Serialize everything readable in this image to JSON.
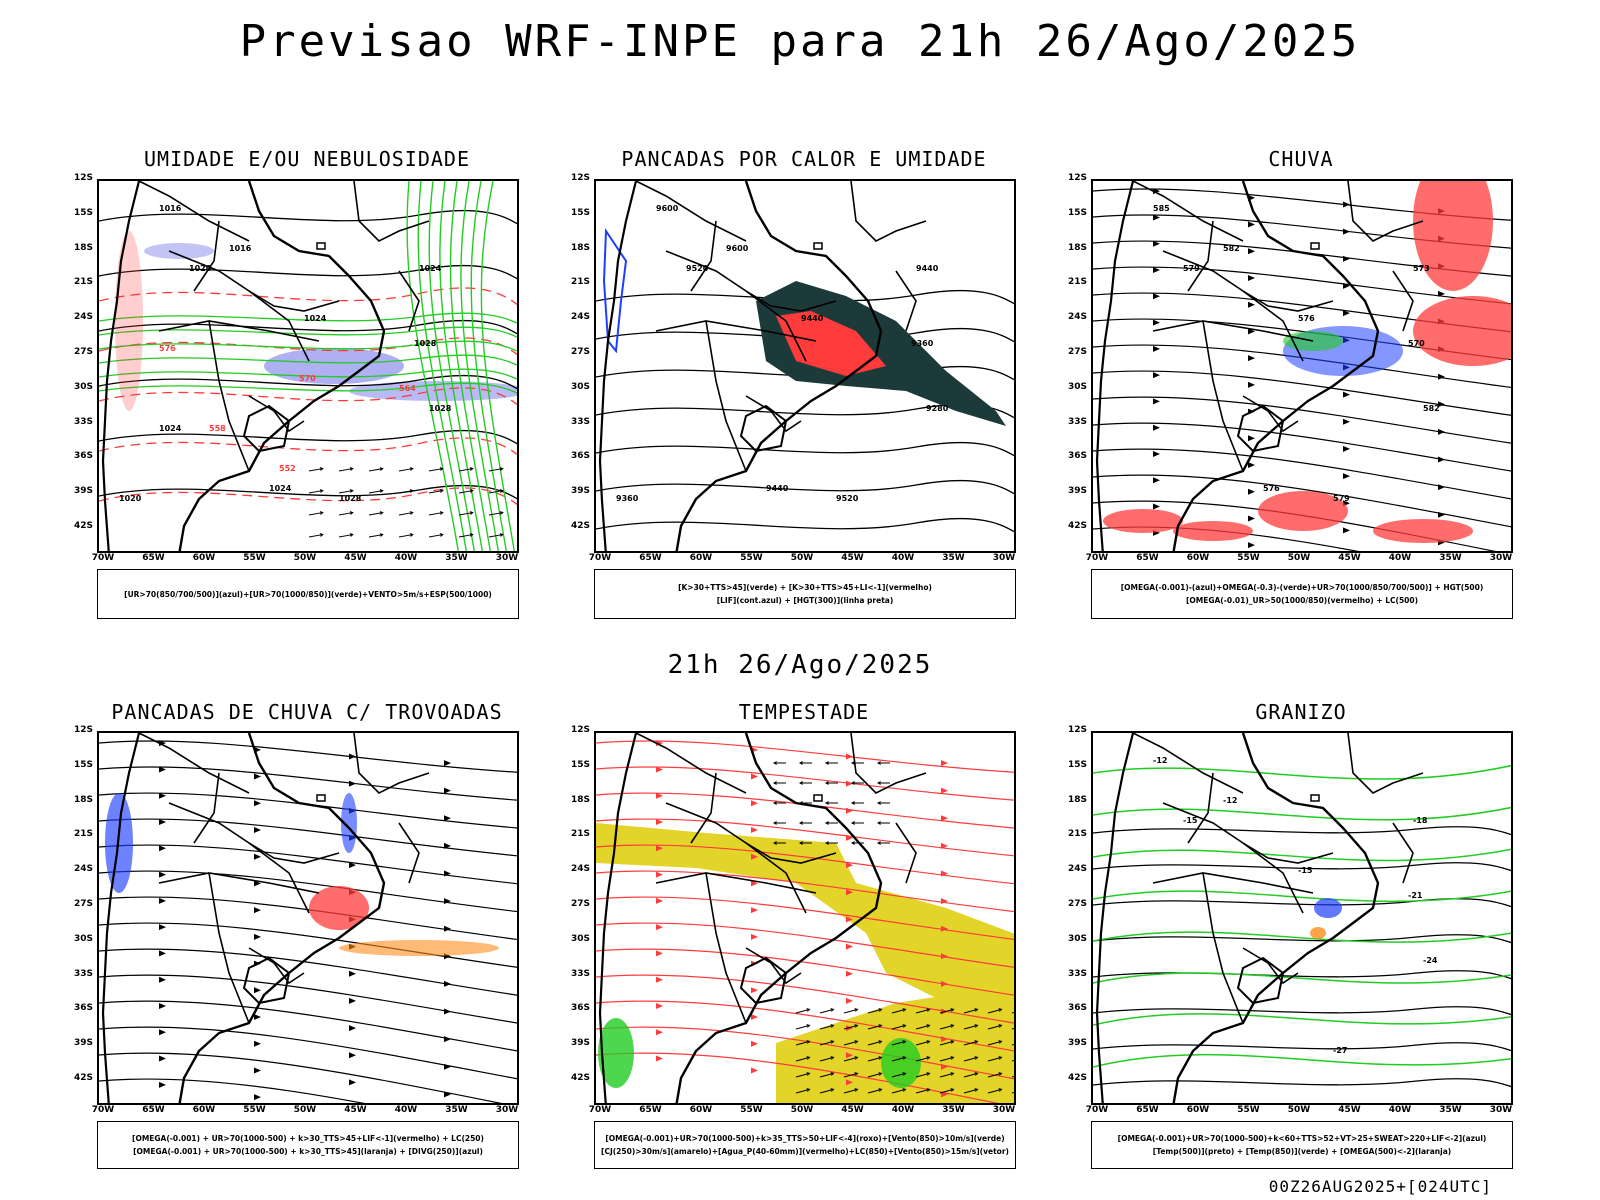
{
  "main_title": "Previsao WRF-INPE  para 21h 26/Ago/2025",
  "mid_title": "21h 26/Ago/2025",
  "footer": "00Z26AUG2025+[024UTC]",
  "lat_ticks": [
    "12S",
    "15S",
    "18S",
    "21S",
    "24S",
    "27S",
    "30S",
    "33S",
    "36S",
    "39S",
    "42S"
  ],
  "lon_ticks": [
    "70W",
    "65W",
    "60W",
    "55W",
    "50W",
    "45W",
    "40W",
    "35W",
    "30W"
  ],
  "colors": {
    "blue": "#1f3fff",
    "green": "#22cc22",
    "red": "#ff3b3b",
    "dark_teal": "#1d3a3a",
    "yellow": "#e3d42a",
    "lavender": "#9a9cf0",
    "orange": "#ff8c1a",
    "black": "#000000"
  },
  "panels": [
    {
      "title": "UMIDADE E/OU NEBULOSIDADE",
      "legend": [
        "[UR>70(850/700/500)](azul)+[UR>70(1000/850)](verde)+VENTO>5m/s+ESP(500/1000)"
      ],
      "contour_labels": [
        "1016",
        "1016",
        "1020",
        "1024",
        "1024",
        "1028",
        "1028",
        "1028",
        "1024",
        "1020",
        "1024",
        "552",
        "558",
        "564",
        "570",
        "576"
      ]
    },
    {
      "title": "PANCADAS POR CALOR E UMIDADE",
      "legend": [
        "[K>30+TTS>45](verde) + [K>30+TTS>45+LI<-1](vermelho)",
        "[LIF](cont.azul) + [HGT(300)](linha preta)"
      ],
      "contour_labels": [
        "9600",
        "9600",
        "9520",
        "9440",
        "9440",
        "9360",
        "9280",
        "9520",
        "9440",
        "9360"
      ]
    },
    {
      "title": "CHUVA",
      "legend": [
        "[OMEGA(-0.001)-(azul)+OMEGA(-0.3)-(verde)+UR>70(1000/850/700/500)] + HGT(500)",
        "[OMEGA(-0.01)_UR>50(1000/850)(vermelho) + LC(500)"
      ],
      "contour_labels": [
        "585",
        "582",
        "579",
        "576",
        "573",
        "570",
        "582",
        "579",
        "576"
      ]
    },
    {
      "title": "PANCADAS DE CHUVA C/ TROVOADAS",
      "legend": [
        "[OMEGA(-0.001) + UR>70(1000-500) + k>30_TTS>45+LIF<-1](vermelho) + LC(250)",
        "[OMEGA(-0.001) + UR>70(1000-500) + k>30_TTS>45](laranja) + [DIVG(250)](azul)"
      ],
      "contour_labels": []
    },
    {
      "title": "TEMPESTADE",
      "legend": [
        "[OMEGA(-0.001)+UR>70(1000-500)+k>35_TTS>50+LIF<-4](roxo)+[Vento(850)>10m/s](verde)",
        "[CJ(250)>30m/s](amarelo)+[Agua_P(40-60mm)](vermelho)+LC(850)+[Vento(850)>15m/s](vetor)"
      ],
      "contour_labels": []
    },
    {
      "title": "GRANIZO",
      "legend": [
        "[OMEGA(-0.001)+UR>70(1000-500)+k<60+TTS>52+VT>25+SWEAT>220+LIF<-2](azul)",
        "[Temp(500)](preto) + [Temp(850)](verde) + [OMEGA(500)<-2](laranja)"
      ],
      "contour_labels": [
        "-12",
        "-12",
        "-15",
        "-15",
        "-18",
        "-21",
        "-24",
        "-27"
      ]
    }
  ]
}
